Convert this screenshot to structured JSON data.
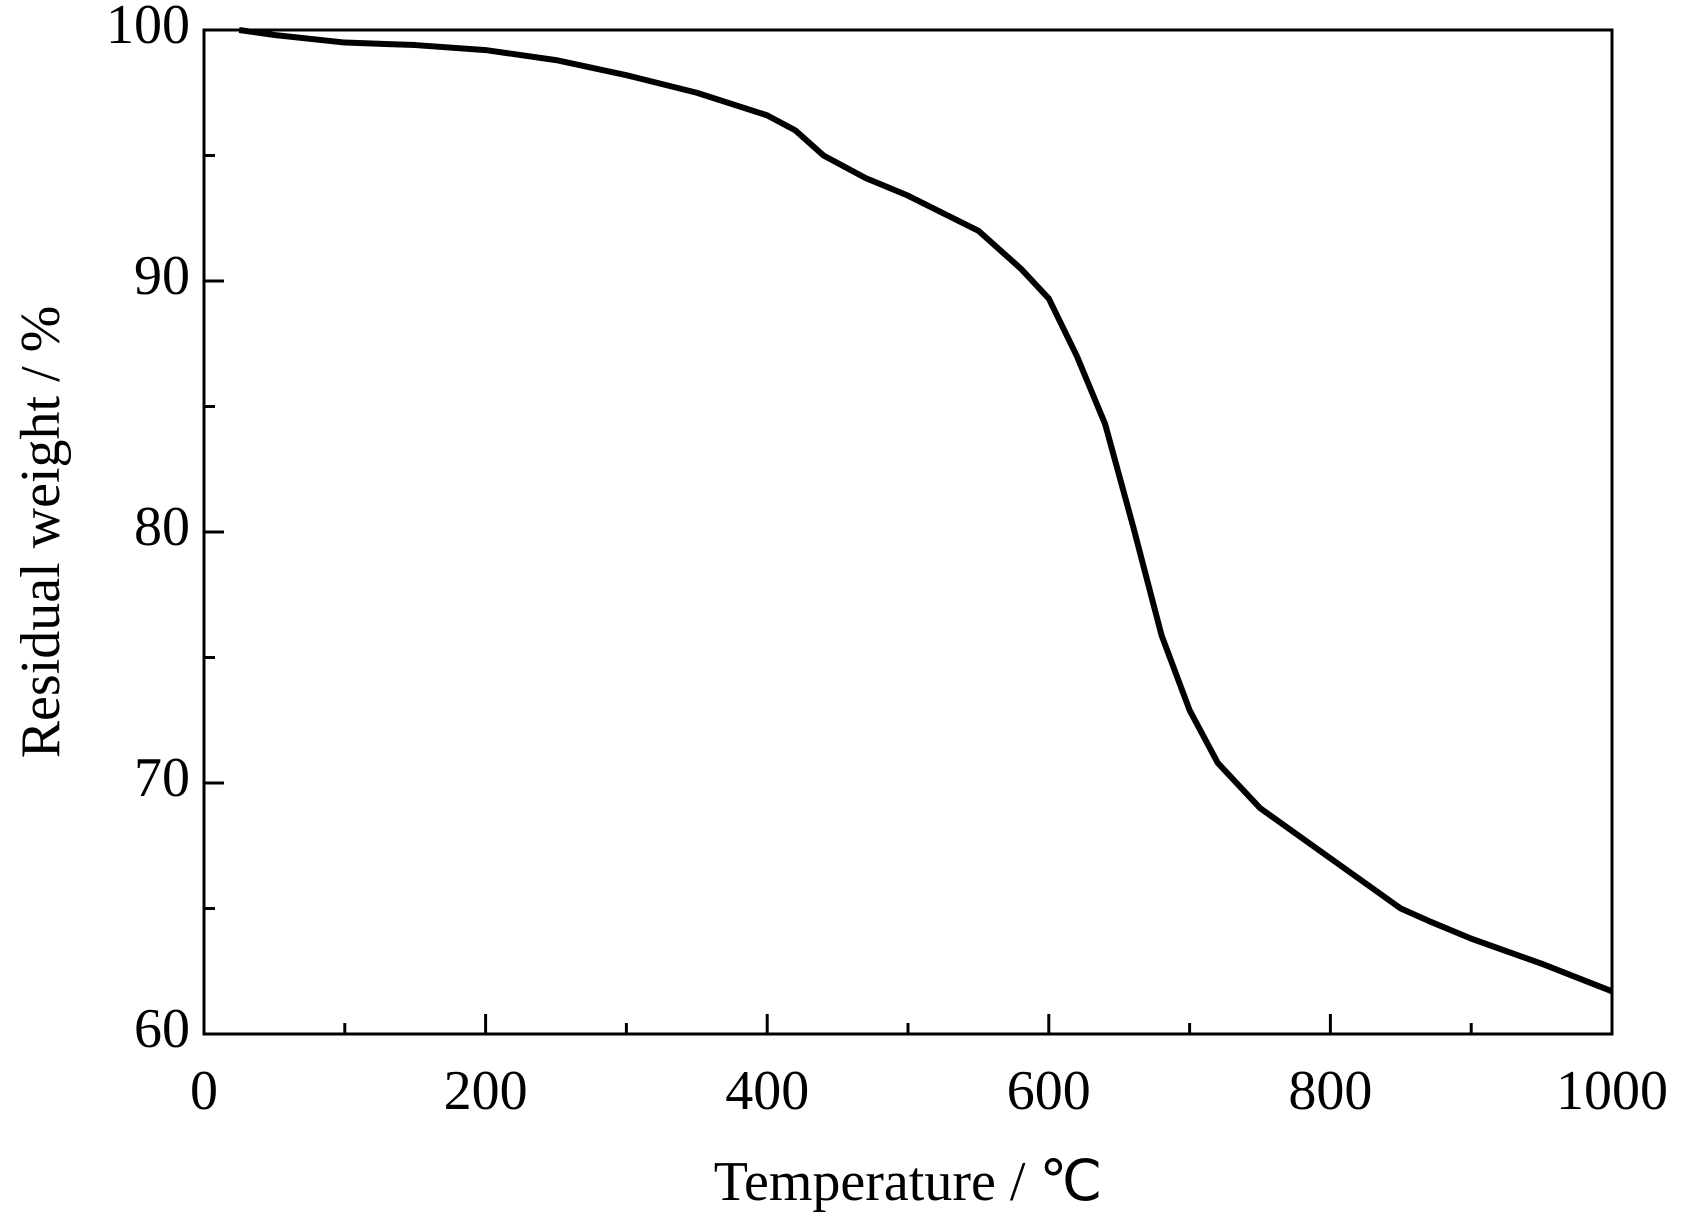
{
  "chart_data": {
    "type": "line",
    "xlabel": "Temperature / ℃",
    "ylabel": "Residual weight / %",
    "xlim": [
      0,
      1000
    ],
    "xticks": [
      0,
      200,
      400,
      600,
      800,
      1000
    ],
    "xminor_ticks": [
      100,
      300,
      500,
      700,
      900
    ],
    "ylim": [
      60,
      100
    ],
    "yticks": [
      60,
      70,
      80,
      90,
      100
    ],
    "yminor_ticks": [
      65,
      75,
      85,
      95
    ],
    "series": [
      {
        "color": "#000000",
        "x": [
          25,
          50,
          100,
          150,
          200,
          250,
          300,
          350,
          400,
          420,
          440,
          470,
          500,
          550,
          580,
          600,
          620,
          640,
          660,
          680,
          700,
          720,
          750,
          800,
          850,
          870,
          900,
          950,
          1000
        ],
        "values": [
          100,
          99.8,
          99.5,
          99.4,
          99.2,
          98.8,
          98.2,
          97.5,
          96.6,
          96.0,
          95.0,
          94.1,
          93.4,
          92.0,
          90.5,
          89.3,
          87.0,
          84.3,
          80.2,
          75.9,
          72.9,
          70.8,
          69.0,
          67.0,
          65.0,
          64.5,
          63.8,
          62.8,
          61.7
        ]
      }
    ]
  }
}
